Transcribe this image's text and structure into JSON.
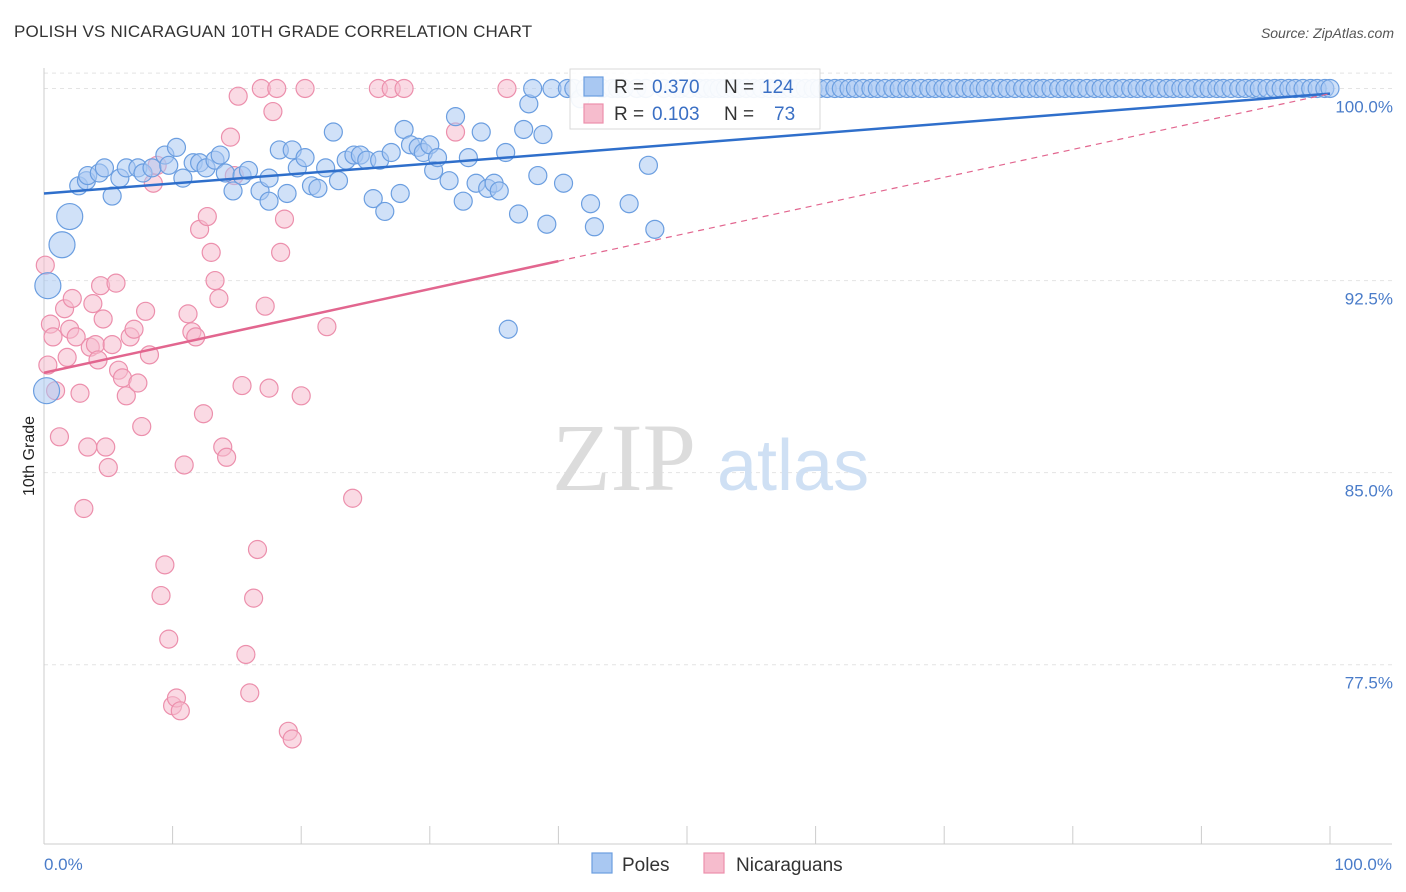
{
  "header": {
    "title": "POLISH VS NICARAGUAN 10TH GRADE CORRELATION CHART",
    "source": "Source: ZipAtlas.com"
  },
  "watermark": {
    "zip": "ZIP",
    "atlas": "atlas"
  },
  "legend_box": {
    "rows": [
      {
        "r_label": "R =",
        "r_value": "0.370",
        "n_label": "N =",
        "n_value": "124"
      },
      {
        "r_label": "R =",
        "r_value": "0.103",
        "n_label": "N =",
        "n_value": "73"
      }
    ]
  },
  "bottom_legend": {
    "poles": "Poles",
    "nicaraguans": "Nicaraguans"
  },
  "colors": {
    "poles_fill": "#a9c8f2",
    "poles_stroke": "#6b9ee0",
    "poles_line": "#2f6fcb",
    "nic_fill": "#f6bccd",
    "nic_stroke": "#ec8fac",
    "nic_line": "#e2668f",
    "tick_color": "#4a7cc9",
    "grid": "#e4e4e4"
  },
  "chart_data": {
    "type": "scatter",
    "title": "POLISH VS NICARAGUAN 10TH GRADE CORRELATION CHART",
    "xlabel": "",
    "ylabel": "10th Grade",
    "xlim": [
      0,
      100
    ],
    "ylim": [
      70.5,
      100.8
    ],
    "x_tick_labels": [
      "0.0%",
      "100.0%"
    ],
    "y_ticks": [
      77.5,
      85.0,
      92.5,
      100.0
    ],
    "y_tick_labels": [
      "77.5%",
      "85.0%",
      "92.5%",
      "100.0%"
    ],
    "grid": true,
    "legend_position": "top-center",
    "series": [
      {
        "name": "Poles",
        "R": 0.37,
        "N": 124,
        "trend": {
          "x0": 0,
          "y0": 95.9,
          "x1": 100,
          "y1": 99.8,
          "dashed_from": null
        },
        "points": [
          [
            0.3,
            92.3
          ],
          [
            0.2,
            88.2
          ],
          [
            1.4,
            93.9
          ],
          [
            2.0,
            95.0
          ],
          [
            2.7,
            96.2
          ],
          [
            3.3,
            96.4
          ],
          [
            3.4,
            96.6
          ],
          [
            4.3,
            96.7
          ],
          [
            4.7,
            96.9
          ],
          [
            5.3,
            95.8
          ],
          [
            5.9,
            96.5
          ],
          [
            6.4,
            96.9
          ],
          [
            7.3,
            96.9
          ],
          [
            7.7,
            96.7
          ],
          [
            8.4,
            96.9
          ],
          [
            9.4,
            97.4
          ],
          [
            9.7,
            97.0
          ],
          [
            10.3,
            97.7
          ],
          [
            10.8,
            96.5
          ],
          [
            11.6,
            97.1
          ],
          [
            12.1,
            97.1
          ],
          [
            12.6,
            96.9
          ],
          [
            13.3,
            97.2
          ],
          [
            13.7,
            97.4
          ],
          [
            14.1,
            96.7
          ],
          [
            14.7,
            96.0
          ],
          [
            15.4,
            96.6
          ],
          [
            15.9,
            96.8
          ],
          [
            16.8,
            96.0
          ],
          [
            17.5,
            95.6
          ],
          [
            17.5,
            96.5
          ],
          [
            18.3,
            97.6
          ],
          [
            18.9,
            95.9
          ],
          [
            19.3,
            97.6
          ],
          [
            19.7,
            96.9
          ],
          [
            20.3,
            97.3
          ],
          [
            20.8,
            96.2
          ],
          [
            21.3,
            96.1
          ],
          [
            21.9,
            96.9
          ],
          [
            22.5,
            98.3
          ],
          [
            22.9,
            96.4
          ],
          [
            23.5,
            97.2
          ],
          [
            24.1,
            97.4
          ],
          [
            24.6,
            97.4
          ],
          [
            25.1,
            97.2
          ],
          [
            25.6,
            95.7
          ],
          [
            26.1,
            97.2
          ],
          [
            26.5,
            95.2
          ],
          [
            27.0,
            97.5
          ],
          [
            27.7,
            95.9
          ],
          [
            28.0,
            98.4
          ],
          [
            28.5,
            97.8
          ],
          [
            29.1,
            97.7
          ],
          [
            29.5,
            97.5
          ],
          [
            30.0,
            97.8
          ],
          [
            30.3,
            96.8
          ],
          [
            30.6,
            97.3
          ],
          [
            31.5,
            96.4
          ],
          [
            32.0,
            98.9
          ],
          [
            32.6,
            95.6
          ],
          [
            33.0,
            97.3
          ],
          [
            33.6,
            96.3
          ],
          [
            34.0,
            98.3
          ],
          [
            34.5,
            96.1
          ],
          [
            35.0,
            96.3
          ],
          [
            35.4,
            96.0
          ],
          [
            35.9,
            97.5
          ],
          [
            36.1,
            90.6
          ],
          [
            36.9,
            95.1
          ],
          [
            37.3,
            98.4
          ],
          [
            37.7,
            99.4
          ],
          [
            38.0,
            100.0
          ],
          [
            38.4,
            96.6
          ],
          [
            38.8,
            98.2
          ],
          [
            39.1,
            94.7
          ],
          [
            39.5,
            100.0
          ],
          [
            40.4,
            96.3
          ],
          [
            40.7,
            100.0
          ],
          [
            41.2,
            100.0
          ],
          [
            41.7,
            99.6
          ],
          [
            42.1,
            100.0
          ],
          [
            42.5,
            95.5
          ],
          [
            42.8,
            94.6
          ],
          [
            43.4,
            100.0
          ],
          [
            44.2,
            100.0
          ],
          [
            44.6,
            100.0
          ],
          [
            45.1,
            100.0
          ],
          [
            45.5,
            95.5
          ],
          [
            46.1,
            100.0
          ],
          [
            46.8,
            100.0
          ],
          [
            47.0,
            97.0
          ],
          [
            47.5,
            94.5
          ],
          [
            48.2,
            100.0
          ],
          [
            49.0,
            100.0
          ],
          [
            49.5,
            100.0
          ],
          [
            50.2,
            100.0
          ],
          [
            51.0,
            100.0
          ],
          [
            51.5,
            100.0
          ],
          [
            52.0,
            100.0
          ],
          [
            52.5,
            100.0
          ],
          [
            53.0,
            100.0
          ],
          [
            53.6,
            100.0
          ],
          [
            54.0,
            100.0
          ],
          [
            54.6,
            100.0
          ],
          [
            55.2,
            100.0
          ],
          [
            55.8,
            100.0
          ],
          [
            56.4,
            100.0
          ],
          [
            57.0,
            100.0
          ],
          [
            57.5,
            100.0
          ],
          [
            58.1,
            100.0
          ],
          [
            58.6,
            100.0
          ],
          [
            59.2,
            100.0
          ],
          [
            59.8,
            100.0
          ],
          [
            60.3,
            100.0
          ],
          [
            60.9,
            100.0
          ],
          [
            61.5,
            100.0
          ],
          [
            62.0,
            100.0
          ],
          [
            62.6,
            100.0
          ],
          [
            63.1,
            100.0
          ],
          [
            63.7,
            100.0
          ],
          [
            64.3,
            100.0
          ],
          [
            64.8,
            100.0
          ],
          [
            65.4,
            100.0
          ],
          [
            66.0,
            100.0
          ],
          [
            66.5,
            100.0
          ],
          [
            67.1,
            100.0
          ],
          [
            67.6,
            100.0
          ],
          [
            68.2,
            100.0
          ],
          [
            68.8,
            100.0
          ],
          [
            69.3,
            100.0
          ],
          [
            69.9,
            100.0
          ],
          [
            70.4,
            100.0
          ],
          [
            71.0,
            100.0
          ],
          [
            71.6,
            100.0
          ],
          [
            72.1,
            100.0
          ],
          [
            72.7,
            100.0
          ],
          [
            73.2,
            100.0
          ],
          [
            73.8,
            100.0
          ],
          [
            74.4,
            100.0
          ],
          [
            74.9,
            100.0
          ],
          [
            75.5,
            100.0
          ],
          [
            76.1,
            100.0
          ],
          [
            76.6,
            100.0
          ],
          [
            77.2,
            100.0
          ],
          [
            77.7,
            100.0
          ],
          [
            78.3,
            100.0
          ],
          [
            78.9,
            100.0
          ],
          [
            79.4,
            100.0
          ],
          [
            80.0,
            100.0
          ],
          [
            80.5,
            100.0
          ],
          [
            81.1,
            100.0
          ],
          [
            81.7,
            100.0
          ],
          [
            82.2,
            100.0
          ],
          [
            82.8,
            100.0
          ],
          [
            83.3,
            100.0
          ],
          [
            83.9,
            100.0
          ],
          [
            84.5,
            100.0
          ],
          [
            85.0,
            100.0
          ],
          [
            85.6,
            100.0
          ],
          [
            86.1,
            100.0
          ],
          [
            86.7,
            100.0
          ],
          [
            87.3,
            100.0
          ],
          [
            87.8,
            100.0
          ],
          [
            88.4,
            100.0
          ],
          [
            88.9,
            100.0
          ],
          [
            89.5,
            100.0
          ],
          [
            90.1,
            100.0
          ],
          [
            90.6,
            100.0
          ],
          [
            91.2,
            100.0
          ],
          [
            91.7,
            100.0
          ],
          [
            92.3,
            100.0
          ],
          [
            92.9,
            100.0
          ],
          [
            93.4,
            100.0
          ],
          [
            94.0,
            100.0
          ],
          [
            94.5,
            100.0
          ],
          [
            95.1,
            100.0
          ],
          [
            95.7,
            100.0
          ],
          [
            96.2,
            100.0
          ],
          [
            96.8,
            100.0
          ],
          [
            97.3,
            100.0
          ],
          [
            97.9,
            100.0
          ],
          [
            98.5,
            100.0
          ],
          [
            99.0,
            100.0
          ],
          [
            99.6,
            100.0
          ],
          [
            100.0,
            100.0
          ]
        ]
      },
      {
        "name": "Nicaraguans",
        "R": 0.103,
        "N": 73,
        "trend": {
          "x0": 0,
          "y0": 88.9,
          "x1": 100,
          "y1": 99.8,
          "dashed_from": 40
        },
        "points": [
          [
            0.1,
            93.1
          ],
          [
            0.3,
            89.2
          ],
          [
            0.5,
            90.8
          ],
          [
            0.7,
            90.3
          ],
          [
            0.9,
            88.2
          ],
          [
            1.2,
            86.4
          ],
          [
            1.6,
            91.4
          ],
          [
            1.8,
            89.5
          ],
          [
            2.0,
            90.6
          ],
          [
            2.2,
            91.8
          ],
          [
            2.5,
            90.3
          ],
          [
            2.8,
            88.1
          ],
          [
            3.1,
            83.6
          ],
          [
            3.4,
            86.0
          ],
          [
            3.6,
            89.9
          ],
          [
            3.8,
            91.6
          ],
          [
            4.0,
            90.0
          ],
          [
            4.2,
            89.4
          ],
          [
            4.4,
            92.3
          ],
          [
            4.6,
            91.0
          ],
          [
            4.8,
            86.0
          ],
          [
            5.0,
            85.2
          ],
          [
            5.3,
            90.0
          ],
          [
            5.6,
            92.4
          ],
          [
            5.8,
            89.0
          ],
          [
            6.1,
            88.7
          ],
          [
            6.4,
            88.0
          ],
          [
            6.7,
            90.3
          ],
          [
            7.0,
            90.6
          ],
          [
            7.3,
            88.5
          ],
          [
            7.6,
            86.8
          ],
          [
            7.9,
            91.3
          ],
          [
            8.2,
            89.6
          ],
          [
            8.5,
            96.3
          ],
          [
            8.8,
            97.0
          ],
          [
            9.1,
            80.2
          ],
          [
            9.4,
            81.4
          ],
          [
            9.7,
            78.5
          ],
          [
            10.0,
            75.9
          ],
          [
            10.3,
            76.2
          ],
          [
            10.6,
            75.7
          ],
          [
            10.9,
            85.3
          ],
          [
            11.2,
            91.2
          ],
          [
            11.5,
            90.5
          ],
          [
            11.8,
            90.3
          ],
          [
            12.1,
            94.5
          ],
          [
            12.4,
            87.3
          ],
          [
            12.7,
            95.0
          ],
          [
            13.0,
            93.6
          ],
          [
            13.3,
            92.5
          ],
          [
            13.6,
            91.8
          ],
          [
            13.9,
            86.0
          ],
          [
            14.2,
            85.6
          ],
          [
            14.5,
            98.1
          ],
          [
            14.8,
            96.6
          ],
          [
            15.1,
            99.7
          ],
          [
            15.4,
            88.4
          ],
          [
            15.7,
            77.9
          ],
          [
            16.0,
            76.4
          ],
          [
            16.3,
            80.1
          ],
          [
            16.6,
            82.0
          ],
          [
            16.9,
            100.0
          ],
          [
            17.2,
            91.5
          ],
          [
            17.5,
            88.3
          ],
          [
            17.8,
            99.1
          ],
          [
            18.1,
            100.0
          ],
          [
            18.4,
            93.6
          ],
          [
            18.7,
            94.9
          ],
          [
            19.0,
            74.9
          ],
          [
            19.3,
            74.6
          ],
          [
            20.0,
            88.0
          ],
          [
            20.3,
            100.0
          ],
          [
            22.0,
            90.7
          ],
          [
            24.0,
            84.0
          ],
          [
            26.0,
            100.0
          ],
          [
            27.0,
            100.0
          ],
          [
            28.0,
            100.0
          ],
          [
            32.0,
            98.3
          ],
          [
            36.0,
            100.0
          ]
        ]
      }
    ]
  }
}
